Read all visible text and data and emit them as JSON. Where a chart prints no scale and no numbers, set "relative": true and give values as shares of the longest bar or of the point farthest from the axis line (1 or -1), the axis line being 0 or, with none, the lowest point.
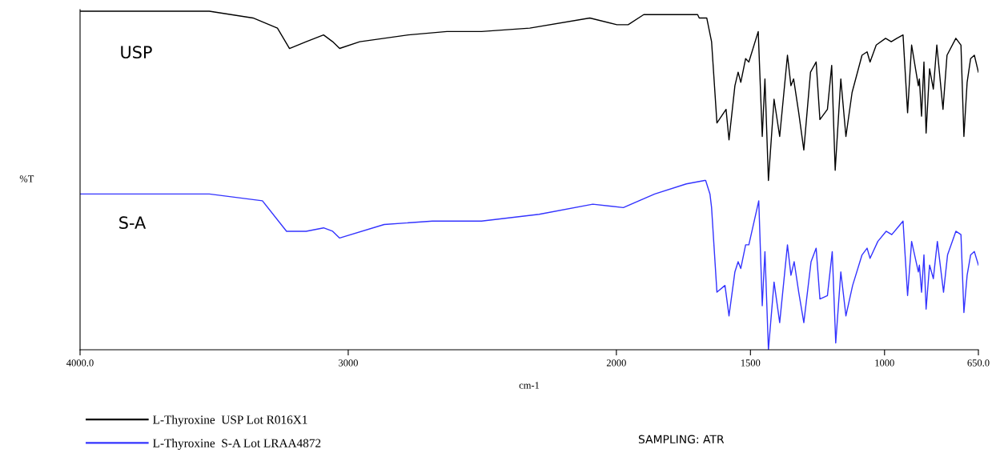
{
  "chart_data": {
    "type": "line",
    "relative": true,
    "xlabel": "cm-1",
    "ylabel": "%T",
    "xlim": [
      4000,
      650
    ],
    "xticks": [
      {
        "value": 4000,
        "label": "4000.0"
      },
      3000,
      2000,
      1500,
      1000,
      {
        "value": 650,
        "label": "650.0"
      }
    ],
    "legend": "bottom",
    "grid": false,
    "annotations": [
      "USP",
      "S-A",
      "SAMPLING: ATR"
    ],
    "series": [
      {
        "name": "L-Thyroxine  USP Lot R016X1",
        "color": "#000000",
        "x": [
          4000,
          3518,
          3355,
          3264,
          3219,
          3157,
          3092,
          3058,
          3032,
          2957,
          2776,
          2632,
          2503,
          2323,
          2099,
          1998,
          1956,
          1898,
          1815,
          1722,
          1697,
          1691,
          1663,
          1645,
          1625,
          1591,
          1580,
          1558,
          1546,
          1536,
          1518,
          1506,
          1471,
          1456,
          1446,
          1433,
          1412,
          1391,
          1362,
          1349,
          1339,
          1320,
          1301,
          1276,
          1255,
          1241,
          1213,
          1197,
          1184,
          1163,
          1144,
          1121,
          1084,
          1065,
          1054,
          1031,
          996,
          975,
          954,
          931,
          914,
          899,
          874,
          870,
          862,
          853,
          845,
          832,
          818,
          805,
          782,
          767,
          734,
          715,
          704,
          692,
          679,
          665,
          650
        ],
        "values": [
          1.0,
          1.0,
          0.98,
          0.95,
          0.89,
          0.91,
          0.93,
          0.91,
          0.89,
          0.91,
          0.93,
          0.94,
          0.94,
          0.95,
          0.98,
          0.96,
          0.96,
          0.99,
          0.99,
          0.99,
          0.99,
          0.98,
          0.98,
          0.91,
          0.67,
          0.71,
          0.62,
          0.78,
          0.82,
          0.79,
          0.86,
          0.85,
          0.94,
          0.63,
          0.8,
          0.5,
          0.74,
          0.63,
          0.87,
          0.78,
          0.8,
          0.7,
          0.59,
          0.82,
          0.85,
          0.68,
          0.71,
          0.84,
          0.53,
          0.8,
          0.63,
          0.76,
          0.87,
          0.88,
          0.85,
          0.9,
          0.92,
          0.91,
          0.92,
          0.93,
          0.7,
          0.9,
          0.78,
          0.8,
          0.69,
          0.85,
          0.64,
          0.83,
          0.77,
          0.9,
          0.71,
          0.87,
          0.92,
          0.9,
          0.63,
          0.79,
          0.86,
          0.87,
          0.82
        ]
      },
      {
        "name": "L-Thyroxine  S-A Lot LRAA4872",
        "color": "#3333ff",
        "x": [
          4000,
          3518,
          3320,
          3230,
          3157,
          3092,
          3058,
          3032,
          2866,
          2686,
          2503,
          2288,
          2088,
          1974,
          1857,
          1739,
          1671,
          1667,
          1651,
          1645,
          1625,
          1595,
          1580,
          1558,
          1546,
          1536,
          1518,
          1506,
          1469,
          1456,
          1446,
          1433,
          1412,
          1391,
          1362,
          1349,
          1337,
          1320,
          1301,
          1274,
          1255,
          1241,
          1213,
          1195,
          1182,
          1163,
          1144,
          1119,
          1084,
          1065,
          1054,
          1025,
          994,
          973,
          952,
          931,
          914,
          899,
          874,
          870,
          862,
          853,
          845,
          832,
          818,
          803,
          780,
          765,
          734,
          715,
          704,
          692,
          679,
          665,
          650
        ],
        "values": [
          0.46,
          0.46,
          0.44,
          0.35,
          0.35,
          0.36,
          0.35,
          0.33,
          0.37,
          0.38,
          0.38,
          0.4,
          0.43,
          0.42,
          0.46,
          0.49,
          0.5,
          0.5,
          0.46,
          0.42,
          0.17,
          0.19,
          0.1,
          0.23,
          0.26,
          0.24,
          0.31,
          0.31,
          0.44,
          0.13,
          0.29,
          0.0,
          0.2,
          0.08,
          0.31,
          0.22,
          0.26,
          0.17,
          0.08,
          0.26,
          0.3,
          0.15,
          0.16,
          0.29,
          0.02,
          0.23,
          0.1,
          0.19,
          0.28,
          0.3,
          0.27,
          0.32,
          0.35,
          0.34,
          0.36,
          0.38,
          0.16,
          0.32,
          0.23,
          0.25,
          0.17,
          0.28,
          0.12,
          0.25,
          0.21,
          0.32,
          0.17,
          0.28,
          0.35,
          0.34,
          0.11,
          0.22,
          0.28,
          0.29,
          0.25
        ]
      }
    ]
  }
}
